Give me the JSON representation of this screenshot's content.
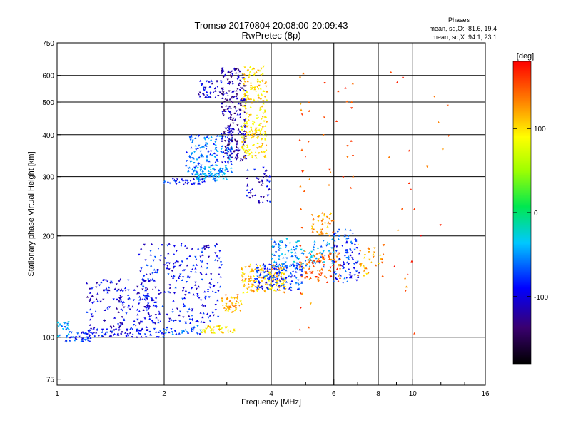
{
  "chart_data": {
    "type": "scatter",
    "title": "Tromsø 20170804 20:08:00-20:09:43",
    "subtitle": "RwPretec (8p)",
    "xlabel": "Frequency [MHz]",
    "ylabel": "Stationary phase Virtual Height [km]",
    "x_scale": "log",
    "y_scale": "log",
    "xlim": [
      1,
      16
    ],
    "ylim": [
      72,
      750
    ],
    "x_ticks": [
      1,
      2,
      4,
      6,
      8,
      10,
      16
    ],
    "x_tick_labels": [
      "1",
      "2",
      "4",
      "6",
      "8",
      "10",
      "16"
    ],
    "x_minor_ticks": [
      3,
      5,
      7,
      9,
      12,
      14
    ],
    "y_ticks": [
      75,
      100,
      200,
      300,
      400,
      500,
      600,
      750
    ],
    "y_tick_labels": [
      "75",
      "100",
      "200",
      "300",
      "400",
      "500",
      "600",
      "750"
    ],
    "grid": true,
    "phase_info": {
      "title": "Phases",
      "line_o": "mean, sd,O: -81.6, 19.4",
      "line_x": "mean, sd,X:  94.1, 23.1"
    },
    "colorbar": {
      "label": "[deg]",
      "range": [
        -180,
        180
      ],
      "tick_values": [
        100,
        0,
        -100
      ],
      "tick_labels": [
        "100",
        "0",
        "-100"
      ]
    },
    "trace_groups": [
      {
        "freq_range": [
          1.0,
          1.08
        ],
        "height_range": [
          100,
          112
        ],
        "phase": -60,
        "count": 20
      },
      {
        "freq_range": [
          1.05,
          1.25
        ],
        "height_range": [
          97,
          104
        ],
        "phase": -90,
        "count": 40
      },
      {
        "freq_range": [
          1.2,
          2.0
        ],
        "height_range": [
          100,
          106
        ],
        "phase": -100,
        "count": 80
      },
      {
        "freq_range": [
          2.0,
          2.55
        ],
        "height_range": [
          102,
          108
        ],
        "phase": -80,
        "count": 30
      },
      {
        "freq_range": [
          2.55,
          3.15
        ],
        "height_range": [
          103,
          108
        ],
        "phase": 110,
        "count": 40
      },
      {
        "freq_range": [
          1.2,
          1.9
        ],
        "height_range": [
          104,
          150
        ],
        "phase": -110,
        "count": 170
      },
      {
        "freq_range": [
          1.7,
          2.9
        ],
        "height_range": [
          110,
          190
        ],
        "phase": -100,
        "count": 260
      },
      {
        "freq_range": [
          2.0,
          2.6
        ],
        "height_range": [
          284,
          296
        ],
        "phase": -95,
        "count": 40
      },
      {
        "freq_range": [
          2.4,
          3.0
        ],
        "height_range": [
          290,
          320
        ],
        "phase": -60,
        "count": 70
      },
      {
        "freq_range": [
          2.3,
          3.1
        ],
        "height_range": [
          310,
          400
        ],
        "phase": -75,
        "count": 150
      },
      {
        "freq_range": [
          2.5,
          2.9
        ],
        "height_range": [
          510,
          580
        ],
        "phase": -110,
        "count": 45
      },
      {
        "freq_range": [
          2.9,
          3.4
        ],
        "height_range": [
          330,
          630
        ],
        "phase": -125,
        "count": 240
      },
      {
        "freq_range": [
          3.3,
          3.9
        ],
        "height_range": [
          340,
          640
        ],
        "phase": 110,
        "count": 200
      },
      {
        "freq_range": [
          3.4,
          4.0
        ],
        "height_range": [
          250,
          320
        ],
        "phase": -110,
        "count": 45
      },
      {
        "freq_range": [
          2.9,
          3.3
        ],
        "height_range": [
          118,
          134
        ],
        "phase": 125,
        "count": 45
      },
      {
        "freq_range": [
          3.3,
          4.4
        ],
        "height_range": [
          135,
          165
        ],
        "phase": 120,
        "count": 150
      },
      {
        "freq_range": [
          3.6,
          4.9
        ],
        "height_range": [
          138,
          165
        ],
        "phase": -90,
        "count": 130
      },
      {
        "freq_range": [
          4.0,
          6.0
        ],
        "height_range": [
          162,
          196
        ],
        "phase": -60,
        "count": 120
      },
      {
        "freq_range": [
          4.8,
          6.3
        ],
        "height_range": [
          145,
          178
        ],
        "phase": 150,
        "count": 90
      },
      {
        "freq_range": [
          5.2,
          6.0
        ],
        "height_range": [
          200,
          235
        ],
        "phase": 130,
        "count": 40
      },
      {
        "freq_range": [
          6.0,
          7.1
        ],
        "height_range": [
          145,
          210
        ],
        "phase": -90,
        "count": 90
      },
      {
        "freq_range": [
          6.9,
          8.3
        ],
        "height_range": [
          152,
          195
        ],
        "phase": 130,
        "count": 35
      },
      {
        "freq_range": [
          4.8,
          5.2
        ],
        "height_range": [
          85,
          660
        ],
        "phase": 150,
        "count": 28
      },
      {
        "freq_range": [
          5.6,
          6.8
        ],
        "height_range": [
          260,
          640
        ],
        "phase": 160,
        "count": 20
      },
      {
        "freq_range": [
          8.0,
          12.8
        ],
        "height_range": [
          95,
          670
        ],
        "phase": 155,
        "count": 25
      }
    ]
  }
}
